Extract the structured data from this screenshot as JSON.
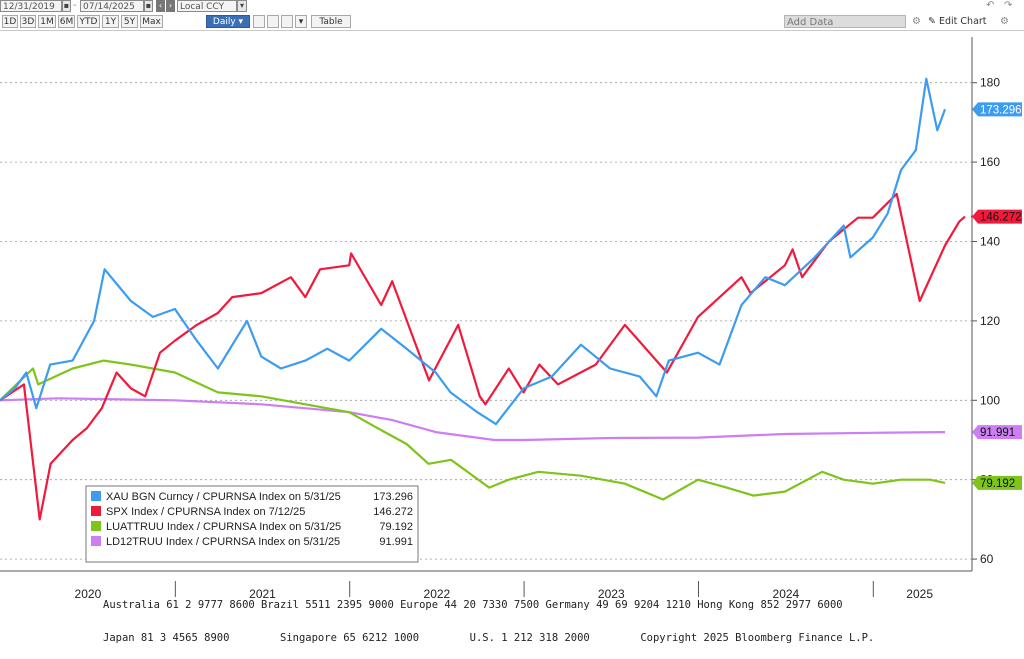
{
  "toolbar": {
    "start_date": "12/31/2019",
    "end_date": "07/14/2025",
    "currency": "Local CCY",
    "periods": [
      "1D",
      "3D",
      "1M",
      "6M",
      "YTD",
      "1Y",
      "5Y",
      "Max"
    ],
    "frequency": "Daily",
    "table_label": "Table",
    "add_data_placeholder": "Add Data",
    "edit_chart_label": "Edit Chart"
  },
  "colors": {
    "gold": "#3d9cf0",
    "spx": "#f01a3c",
    "luattruu": "#7ec41a",
    "ld12truu": "#cc7ef2"
  },
  "chart_data": {
    "type": "line",
    "x_labels": [
      "2020",
      "2021",
      "2022",
      "2023",
      "2024",
      "2025"
    ],
    "yticks": [
      60,
      80,
      100,
      120,
      140,
      160,
      180
    ],
    "ylim": [
      57,
      190
    ],
    "xlim": [
      "2019-12-31",
      "2025-07-14"
    ],
    "grid": true,
    "legend_position": "bottom-left",
    "series": [
      {
        "name": "XAU BGN Curncy / CPURNSA Index on 5/31/25",
        "value_label": "173.296",
        "last": 173.296,
        "points": [
          [
            "2019-12-31",
            100
          ],
          [
            "2020-01-31",
            103
          ],
          [
            "2020-02-24",
            107
          ],
          [
            "2020-03-16",
            98
          ],
          [
            "2020-04-14",
            109
          ],
          [
            "2020-05-31",
            110
          ],
          [
            "2020-07-15",
            120
          ],
          [
            "2020-08-06",
            133
          ],
          [
            "2020-09-30",
            125
          ],
          [
            "2020-11-15",
            121
          ],
          [
            "2020-12-31",
            123
          ],
          [
            "2021-02-15",
            115
          ],
          [
            "2021-03-31",
            108
          ],
          [
            "2021-05-31",
            120
          ],
          [
            "2021-06-30",
            111
          ],
          [
            "2021-08-10",
            108
          ],
          [
            "2021-09-30",
            110
          ],
          [
            "2021-11-15",
            113
          ],
          [
            "2021-12-31",
            110
          ],
          [
            "2022-03-08",
            118
          ],
          [
            "2022-04-30",
            113
          ],
          [
            "2022-06-30",
            107
          ],
          [
            "2022-07-31",
            102
          ],
          [
            "2022-09-25",
            97
          ],
          [
            "2022-11-03",
            94
          ],
          [
            "2022-12-31",
            103
          ],
          [
            "2023-02-28",
            106
          ],
          [
            "2023-04-30",
            114
          ],
          [
            "2023-06-30",
            108
          ],
          [
            "2023-08-31",
            106
          ],
          [
            "2023-10-05",
            101
          ],
          [
            "2023-10-31",
            110
          ],
          [
            "2023-12-31",
            112
          ],
          [
            "2024-02-14",
            109
          ],
          [
            "2024-03-31",
            124
          ],
          [
            "2024-05-20",
            131
          ],
          [
            "2024-06-30",
            129
          ],
          [
            "2024-08-31",
            136
          ],
          [
            "2024-10-31",
            144
          ],
          [
            "2024-11-14",
            136
          ],
          [
            "2024-12-31",
            141
          ],
          [
            "2025-01-31",
            147
          ],
          [
            "2025-02-28",
            158
          ],
          [
            "2025-03-31",
            163
          ],
          [
            "2025-04-22",
            181
          ],
          [
            "2025-05-15",
            168
          ],
          [
            "2025-05-31",
            173.296
          ]
        ]
      },
      {
        "name": "SPX Index / CPURNSA Index on 7/12/25",
        "value_label": "146.272",
        "last": 146.272,
        "points": [
          [
            "2019-12-31",
            100
          ],
          [
            "2020-02-19",
            104
          ],
          [
            "2020-03-23",
            70
          ],
          [
            "2020-04-15",
            84
          ],
          [
            "2020-05-31",
            90
          ],
          [
            "2020-06-30",
            93
          ],
          [
            "2020-07-31",
            98
          ],
          [
            "2020-08-31",
            107
          ],
          [
            "2020-09-30",
            103
          ],
          [
            "2020-10-30",
            101
          ],
          [
            "2020-11-30",
            112
          ],
          [
            "2020-12-31",
            115
          ],
          [
            "2021-02-15",
            119
          ],
          [
            "2021-03-31",
            122
          ],
          [
            "2021-04-30",
            126
          ],
          [
            "2021-06-30",
            127
          ],
          [
            "2021-08-31",
            131
          ],
          [
            "2021-09-30",
            126
          ],
          [
            "2021-10-31",
            133
          ],
          [
            "2021-12-31",
            134
          ],
          [
            "2022-01-04",
            137
          ],
          [
            "2022-03-08",
            124
          ],
          [
            "2022-03-31",
            130
          ],
          [
            "2022-06-16",
            105
          ],
          [
            "2022-08-16",
            119
          ],
          [
            "2022-09-30",
            101
          ],
          [
            "2022-10-12",
            99
          ],
          [
            "2022-11-30",
            108
          ],
          [
            "2022-12-31",
            102
          ],
          [
            "2023-02-02",
            109
          ],
          [
            "2023-03-13",
            104
          ],
          [
            "2023-05-31",
            109
          ],
          [
            "2023-07-31",
            119
          ],
          [
            "2023-10-27",
            107
          ],
          [
            "2023-12-31",
            121
          ],
          [
            "2024-03-31",
            131
          ],
          [
            "2024-04-19",
            127
          ],
          [
            "2024-06-30",
            134
          ],
          [
            "2024-07-16",
            138
          ],
          [
            "2024-08-05",
            131
          ],
          [
            "2024-09-30",
            140
          ],
          [
            "2024-11-30",
            146
          ],
          [
            "2024-12-31",
            146
          ],
          [
            "2025-02-19",
            152
          ],
          [
            "2025-04-08",
            125
          ],
          [
            "2025-05-31",
            139
          ],
          [
            "2025-06-30",
            145
          ],
          [
            "2025-07-12",
            146.272
          ]
        ]
      },
      {
        "name": "LUATTRUU Index / CPURNSA Index on 5/31/25",
        "value_label": "79.192",
        "last": 79.192,
        "points": [
          [
            "2019-12-31",
            100
          ],
          [
            "2020-03-09",
            108
          ],
          [
            "2020-03-20",
            104
          ],
          [
            "2020-05-31",
            108
          ],
          [
            "2020-08-04",
            110
          ],
          [
            "2020-09-30",
            109
          ],
          [
            "2020-12-31",
            107
          ],
          [
            "2021-03-31",
            102
          ],
          [
            "2021-06-30",
            101
          ],
          [
            "2021-09-30",
            99
          ],
          [
            "2021-12-31",
            97
          ],
          [
            "2022-02-28",
            93
          ],
          [
            "2022-04-30",
            89
          ],
          [
            "2022-06-15",
            84
          ],
          [
            "2022-08-01",
            85
          ],
          [
            "2022-10-20",
            78
          ],
          [
            "2022-11-30",
            80
          ],
          [
            "2023-01-31",
            82
          ],
          [
            "2023-04-30",
            81
          ],
          [
            "2023-07-31",
            79
          ],
          [
            "2023-10-19",
            75
          ],
          [
            "2023-12-31",
            80
          ],
          [
            "2024-02-29",
            78
          ],
          [
            "2024-04-25",
            76
          ],
          [
            "2024-06-30",
            77
          ],
          [
            "2024-09-16",
            82
          ],
          [
            "2024-10-31",
            80
          ],
          [
            "2024-12-31",
            79
          ],
          [
            "2025-02-28",
            80
          ],
          [
            "2025-04-30",
            80
          ],
          [
            "2025-05-31",
            79.192
          ]
        ]
      },
      {
        "name": "LD12TRUU Index / CPURNSA Index on 5/31/25",
        "value_label": "91.991",
        "last": 91.991,
        "points": [
          [
            "2019-12-31",
            100
          ],
          [
            "2020-04-30",
            100.5
          ],
          [
            "2020-12-31",
            100
          ],
          [
            "2021-06-30",
            99
          ],
          [
            "2021-12-31",
            97
          ],
          [
            "2022-03-31",
            95
          ],
          [
            "2022-06-30",
            92
          ],
          [
            "2022-10-31",
            90
          ],
          [
            "2022-12-31",
            90
          ],
          [
            "2023-06-30",
            90.5
          ],
          [
            "2023-12-31",
            90.6
          ],
          [
            "2024-06-30",
            91.5
          ],
          [
            "2024-12-31",
            91.8
          ],
          [
            "2025-05-31",
            91.991
          ]
        ]
      }
    ]
  },
  "footer": {
    "line1": "Australia 61 2 9777 8600 Brazil 5511 2395 9000 Europe 44 20 7330 7500 Germany 49 69 9204 1210 Hong Kong 852 2977 6000",
    "line2": "Japan 81 3 4565 8900        Singapore 65 6212 1000        U.S. 1 212 318 2000        Copyright 2025 Bloomberg Finance L.P."
  }
}
